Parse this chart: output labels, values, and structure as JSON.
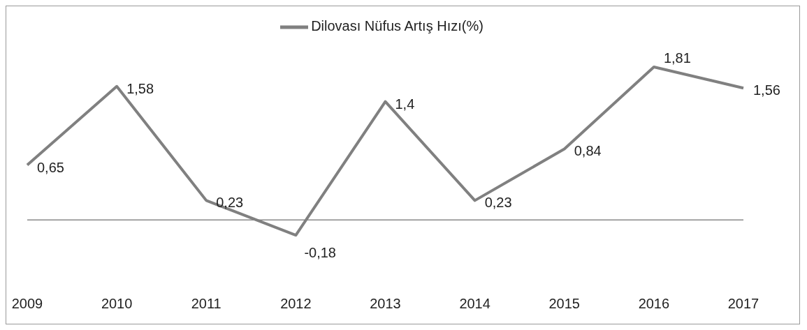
{
  "chart_data": {
    "type": "line",
    "categories": [
      "2009",
      "2010",
      "2011",
      "2012",
      "2013",
      "2014",
      "2015",
      "2016",
      "2017"
    ],
    "series": [
      {
        "name": "Dilovası Nüfus Artış Hızı(%)",
        "color": "#808080",
        "values": [
          0.65,
          1.58,
          0.23,
          -0.18,
          1.4,
          0.23,
          0.84,
          1.81,
          1.56
        ],
        "value_labels": [
          "0,65",
          "1,58",
          "0,23",
          "-0,18",
          "1,4",
          "0,23",
          "0,84",
          "1,81",
          "1,56"
        ]
      }
    ],
    "legend": "top",
    "marker": "none"
  }
}
